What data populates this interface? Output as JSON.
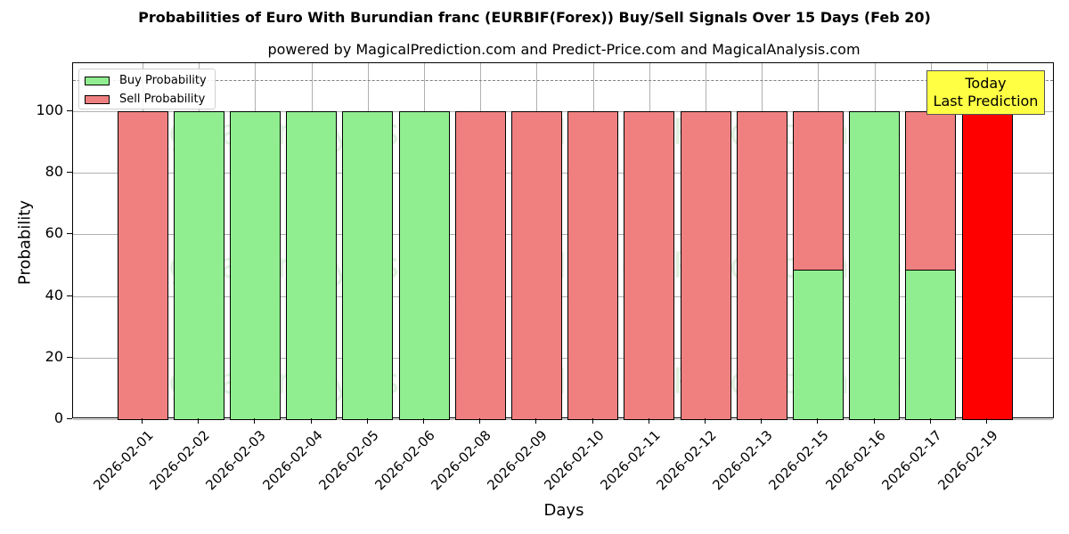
{
  "chart_data": {
    "type": "bar",
    "stacked": true,
    "title": "Probabilities of Euro With Burundian franc (EURBIF(Forex)) Buy/Sell Signals Over 15 Days (Feb 20)",
    "subtitle": "powered by MagicalPrediction.com and Predict-Price.com and MagicalAnalysis.com",
    "xlabel": "Days",
    "ylabel": "Probability",
    "ylim": [
      0,
      115
    ],
    "yticks": [
      0,
      20,
      40,
      60,
      80,
      100
    ],
    "grid": true,
    "legend_position": "upper left",
    "categories": [
      "2026-02-01",
      "2026-02-02",
      "2026-02-03",
      "2026-02-04",
      "2026-02-05",
      "2026-02-06",
      "2026-02-08",
      "2026-02-09",
      "2026-02-10",
      "2026-02-11",
      "2026-02-12",
      "2026-02-13",
      "2026-02-15",
      "2026-02-16",
      "2026-02-17",
      "2026-02-19"
    ],
    "series": [
      {
        "name": "Buy Probability",
        "color": "#90ee90",
        "values": [
          0,
          100,
          100,
          100,
          100,
          100,
          0,
          0,
          0,
          0,
          0,
          0,
          48.5,
          100,
          48.5,
          0
        ]
      },
      {
        "name": "Sell Probability",
        "color": "#f08080",
        "values": [
          100,
          0,
          0,
          0,
          0,
          0,
          100,
          100,
          100,
          100,
          100,
          100,
          51.5,
          0,
          51.5,
          100
        ]
      }
    ],
    "highlight": {
      "category": "2026-02-19",
      "color": "#ff0000"
    },
    "reference_line": {
      "y": 110,
      "style": "dashed",
      "color": "#808080"
    },
    "annotations": [
      {
        "text": "Today\nLast Prediction",
        "x": "2026-02-19",
        "background": "#ffff44"
      }
    ],
    "watermarks": [
      "MagicalAnalysis.com",
      "MagicalPrediction.com"
    ]
  },
  "legend": {
    "buy_label": "Buy Probability",
    "sell_label": "Sell Probability"
  },
  "annotation": {
    "line1": "Today",
    "line2": "Last Prediction"
  }
}
